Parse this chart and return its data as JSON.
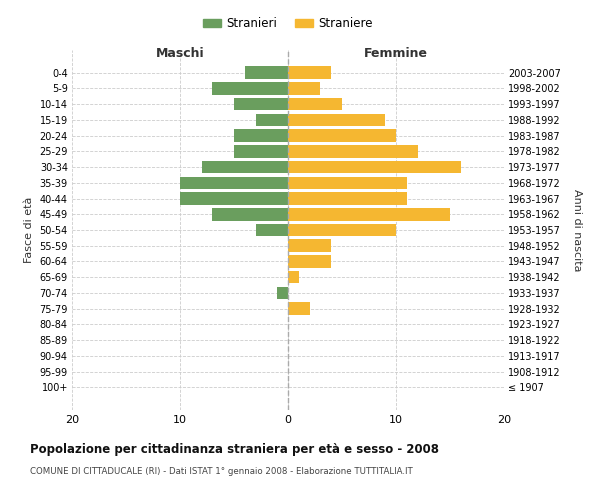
{
  "age_groups": [
    "100+",
    "95-99",
    "90-94",
    "85-89",
    "80-84",
    "75-79",
    "70-74",
    "65-69",
    "60-64",
    "55-59",
    "50-54",
    "45-49",
    "40-44",
    "35-39",
    "30-34",
    "25-29",
    "20-24",
    "15-19",
    "10-14",
    "5-9",
    "0-4"
  ],
  "birth_years": [
    "≤ 1907",
    "1908-1912",
    "1913-1917",
    "1918-1922",
    "1923-1927",
    "1928-1932",
    "1933-1937",
    "1938-1942",
    "1943-1947",
    "1948-1952",
    "1953-1957",
    "1958-1962",
    "1963-1967",
    "1968-1972",
    "1973-1977",
    "1978-1982",
    "1983-1987",
    "1988-1992",
    "1993-1997",
    "1998-2002",
    "2003-2007"
  ],
  "maschi": [
    0,
    0,
    0,
    0,
    0,
    0,
    1,
    0,
    0,
    0,
    3,
    7,
    10,
    10,
    8,
    5,
    5,
    3,
    5,
    7,
    4
  ],
  "femmine": [
    0,
    0,
    0,
    0,
    0,
    2,
    0,
    1,
    4,
    4,
    10,
    15,
    11,
    11,
    16,
    12,
    10,
    9,
    5,
    3,
    4
  ],
  "male_color": "#6a9e5e",
  "female_color": "#f5b731",
  "title": "Popolazione per cittadinanza straniera per età e sesso - 2008",
  "subtitle": "COMUNE DI CITTADUCALE (RI) - Dati ISTAT 1° gennaio 2008 - Elaborazione TUTTITALIA.IT",
  "xlabel_left": "Maschi",
  "xlabel_right": "Femmine",
  "ylabel_left": "Fasce di età",
  "ylabel_right": "Anni di nascita",
  "xlim": [
    -20,
    20
  ],
  "xticks": [
    -20,
    -10,
    0,
    10,
    20
  ],
  "xtick_labels": [
    "20",
    "10",
    "0",
    "10",
    "20"
  ],
  "legend_stranieri": "Stranieri",
  "legend_straniere": "Straniere",
  "bg_color": "#ffffff",
  "grid_color": "#cccccc",
  "bar_height": 0.8
}
